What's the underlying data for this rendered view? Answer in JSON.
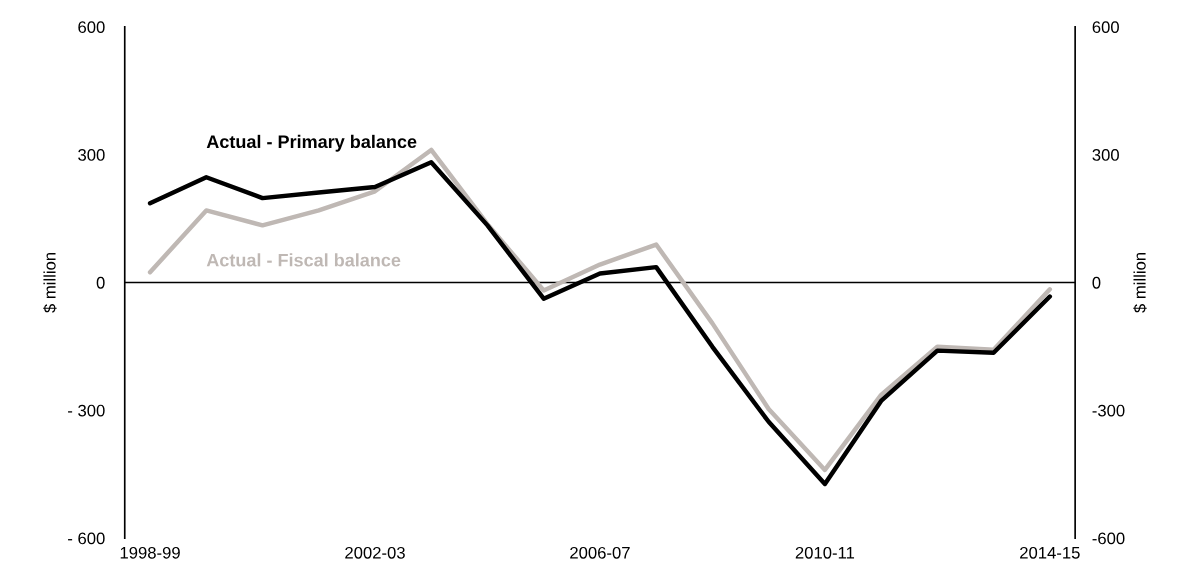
{
  "chart_data": {
    "type": "line",
    "categories": [
      "1998-99",
      null,
      null,
      null,
      "2002-03",
      null,
      null,
      null,
      "2006-07",
      null,
      null,
      null,
      "2010-11",
      null,
      null,
      null,
      "2014-15"
    ],
    "series": [
      {
        "name": "Actual - Primary balance",
        "color": "#000000",
        "values": [
          186,
          247,
          198,
          211,
          224,
          282,
          134,
          -38,
          21,
          36,
          -151,
          -327,
          -473,
          -278,
          -160,
          -165,
          -33
        ]
      },
      {
        "name": "Actual - Fiscal balance",
        "color": "#bfb8b4",
        "values": [
          24,
          169,
          134,
          169,
          214,
          311,
          137,
          -19,
          42,
          89,
          -96,
          -297,
          -440,
          -264,
          -151,
          -158,
          -16
        ]
      }
    ],
    "ylabel": "$ million",
    "y2label": "$ million",
    "ylim": [
      -600,
      600
    ],
    "yticks": [
      {
        "value": -600,
        "label": "- 600"
      },
      {
        "value": -300,
        "label": "- 300"
      },
      0,
      300,
      600
    ],
    "y2lim": [
      -600,
      600
    ],
    "y2ticks": [
      -600,
      -300,
      0,
      300,
      600
    ],
    "ref_lines": [
      {
        "axis": "y",
        "value": 0,
        "color": "#000000"
      }
    ],
    "grid": false,
    "legend": false,
    "marker": "none",
    "line_style": "solid"
  }
}
